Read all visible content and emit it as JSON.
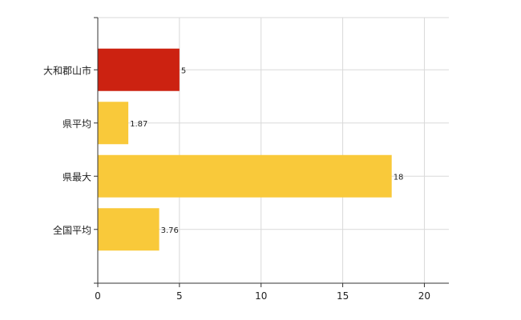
{
  "chart_data": {
    "type": "bar",
    "orientation": "horizontal",
    "categories": [
      "大和郡山市",
      "県平均",
      "県最大",
      "全国平均"
    ],
    "values": [
      5,
      1.87,
      18,
      3.76
    ],
    "value_labels": [
      "5",
      "1.87",
      "18",
      "3.76"
    ],
    "bar_colors": [
      "#cc2211",
      "#f9c93a",
      "#f9c93a",
      "#f9c93a"
    ],
    "xlim": [
      0,
      21.5
    ],
    "xticks": [
      0,
      5,
      10,
      15,
      20
    ],
    "grid": true,
    "legend": "none"
  },
  "colors": {
    "highlight": "#cc2211",
    "bar": "#f9c93a",
    "grid": "#d9d9d9",
    "axis": "#333333"
  }
}
